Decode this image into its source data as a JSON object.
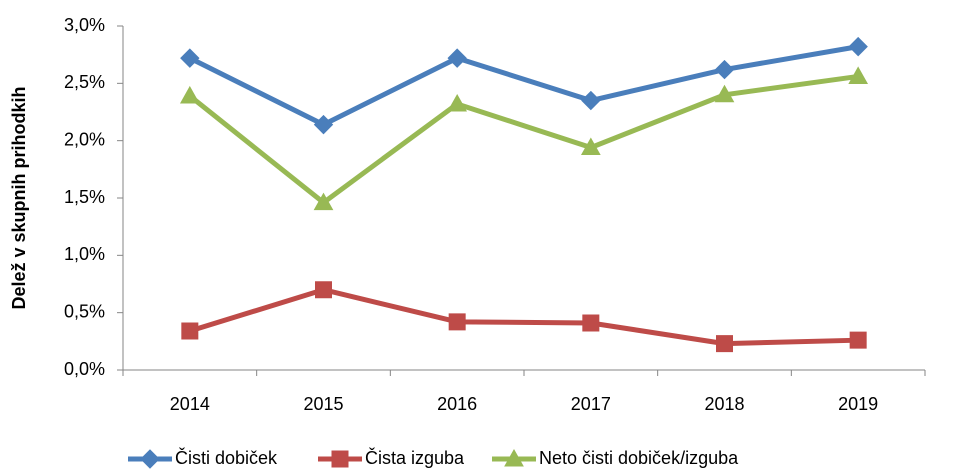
{
  "chart_data": {
    "type": "line",
    "ylabel": "Delež v skupnih prihodkih",
    "categories": [
      "2014",
      "2015",
      "2016",
      "2017",
      "2018",
      "2019"
    ],
    "series": [
      {
        "name": "Čisti dobiček",
        "color": "#4a7ebb",
        "marker": "diamond",
        "values": [
          2.72,
          2.14,
          2.72,
          2.35,
          2.62,
          2.82
        ]
      },
      {
        "name": "Čista izguba",
        "color": "#be4b48",
        "marker": "square",
        "values": [
          0.34,
          0.7,
          0.42,
          0.41,
          0.23,
          0.26
        ]
      },
      {
        "name": "Neto čisti dobiček/izguba",
        "color": "#98b954",
        "marker": "triangle",
        "values": [
          2.39,
          1.46,
          2.32,
          1.94,
          2.4,
          2.56
        ]
      }
    ],
    "ylim": [
      0,
      3
    ],
    "yticks": [
      {
        "value": 0,
        "label": "0,0%"
      },
      {
        "value": 0.5,
        "label": "0,5%"
      },
      {
        "value": 1,
        "label": "1,0%"
      },
      {
        "value": 1.5,
        "label": "1,5%"
      },
      {
        "value": 2,
        "label": "2,0%"
      },
      {
        "value": 2.5,
        "label": "2,5%"
      },
      {
        "value": 3,
        "label": "3,0%"
      }
    ],
    "grid": false,
    "legend": "bottom"
  }
}
